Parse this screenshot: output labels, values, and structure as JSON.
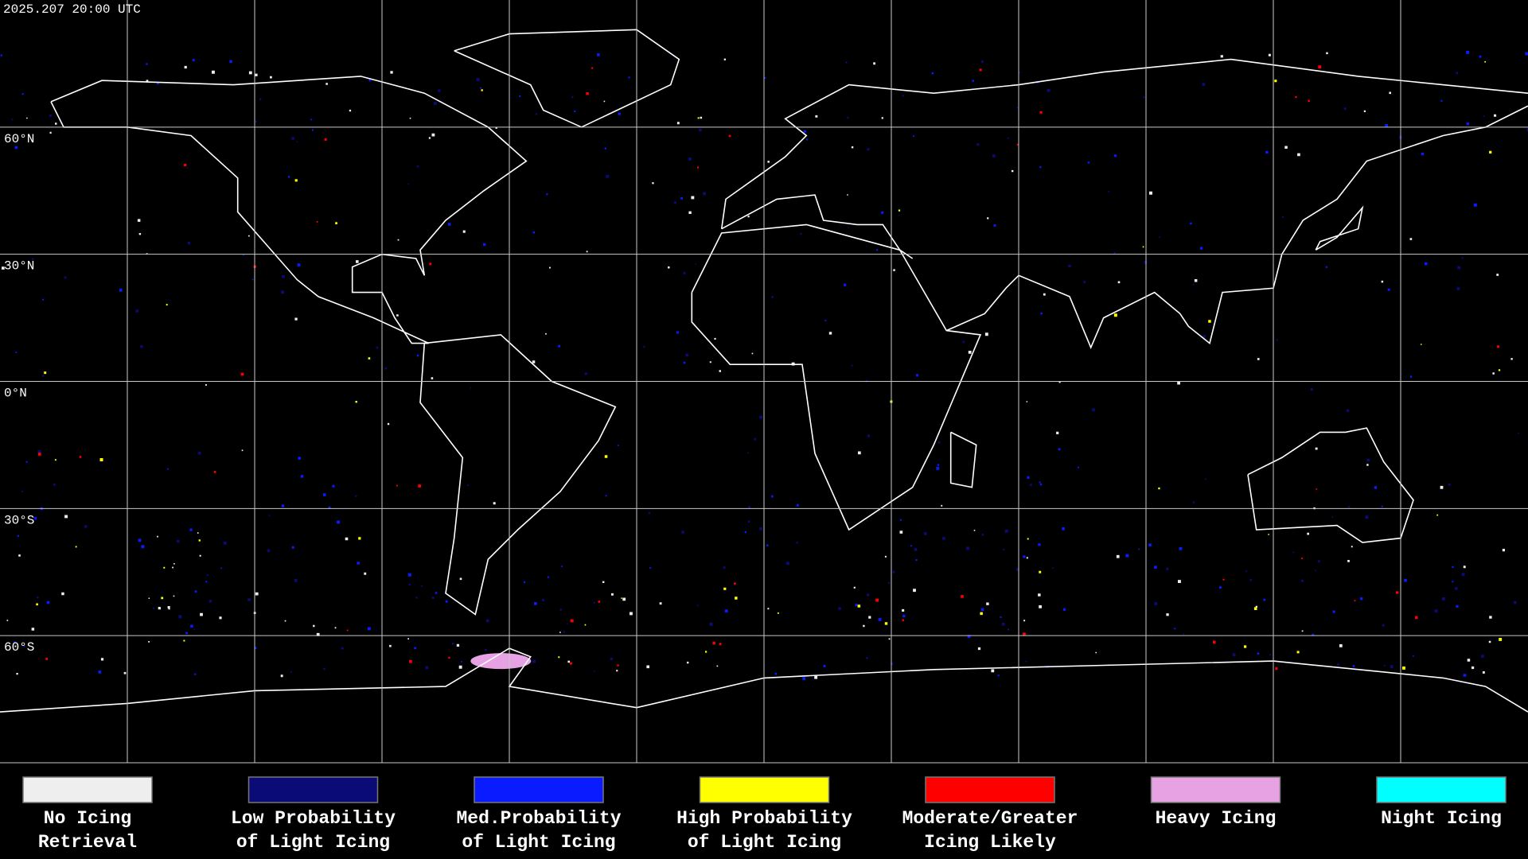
{
  "timestamp": "2025.207 20:00 UTC",
  "map": {
    "latitude_labels": [
      "60°N",
      "30°N",
      "0°N",
      "30°S",
      "60°S"
    ]
  },
  "legend": [
    {
      "label_lines": [
        "No Icing",
        "Retrieval"
      ],
      "color": "#eeeeee"
    },
    {
      "label_lines": [
        "Low Probability",
        "of Light Icing"
      ],
      "color": "#0b0b78"
    },
    {
      "label_lines": [
        "Med.Probability",
        "of Light Icing"
      ],
      "color": "#0a1cff"
    },
    {
      "label_lines": [
        "High Probability",
        "of Light Icing"
      ],
      "color": "#ffff00"
    },
    {
      "label_lines": [
        "Moderate/Greater",
        "Icing Likely"
      ],
      "color": "#ff0000"
    },
    {
      "label_lines": [
        "Heavy Icing"
      ],
      "color": "#e6a2e2"
    },
    {
      "label_lines": [
        "Night Icing"
      ],
      "color": "#00ffff"
    }
  ]
}
